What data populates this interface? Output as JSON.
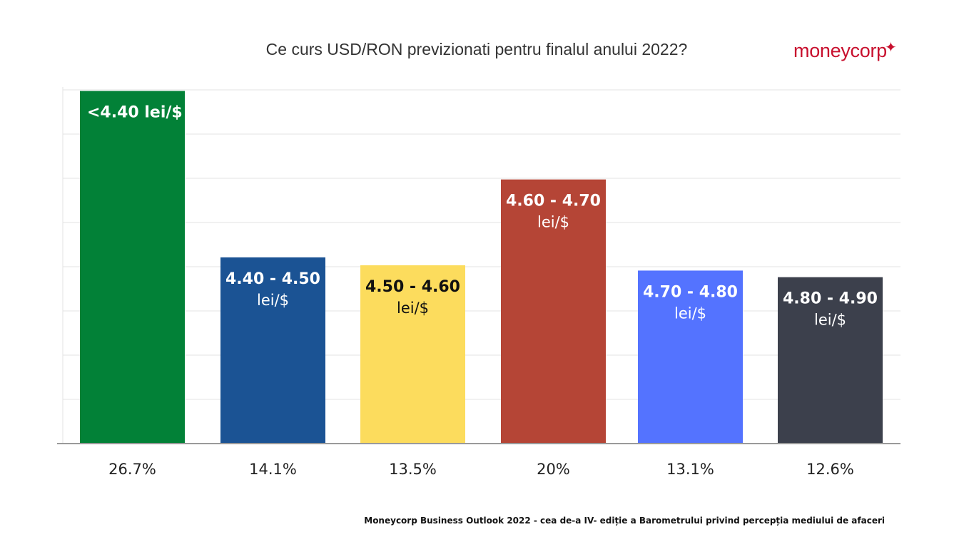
{
  "header": {
    "logo_text": "moneycorp",
    "logo_icon": "sparkle-icon"
  },
  "footer": {
    "source": "Moneycorp Business Outlook 2022 - cea de-a IV- ediție a Barometrului privind percepția mediului de afaceri"
  },
  "chart_data": {
    "type": "bar",
    "title": "Ce curs USD/RON previzionati pentru finalul anului 2022?",
    "xlabel": "",
    "ylabel": "",
    "categories": [
      {
        "line1": "<4.40 lei/$",
        "line2": ""
      },
      {
        "line1": "4.40 - 4.50",
        "line2": "lei/$"
      },
      {
        "line1": "4.50 - 4.60",
        "line2": "lei/$"
      },
      {
        "line1": "4.60 - 4.70",
        "line2": "lei/$"
      },
      {
        "line1": "4.70 - 4.80",
        "line2": "lei/$"
      },
      {
        "line1": "4.80 - 4.90",
        "line2": "lei/$"
      }
    ],
    "values": [
      26.7,
      14.1,
      13.5,
      20,
      13.1,
      12.6
    ],
    "value_labels": [
      "26.7%",
      "14.1%",
      "13.5%",
      "20%",
      "13.1%",
      "12.6%"
    ],
    "colors": [
      "#028137",
      "#1b5394",
      "#fcdc5d",
      "#b54536",
      "#5473ff",
      "#3c404c"
    ],
    "label_colors": [
      "#ffffff",
      "#ffffff",
      "#111111",
      "#ffffff",
      "#ffffff",
      "#ffffff"
    ],
    "ylim": [
      0,
      27
    ],
    "grid": true,
    "legend": "none"
  }
}
